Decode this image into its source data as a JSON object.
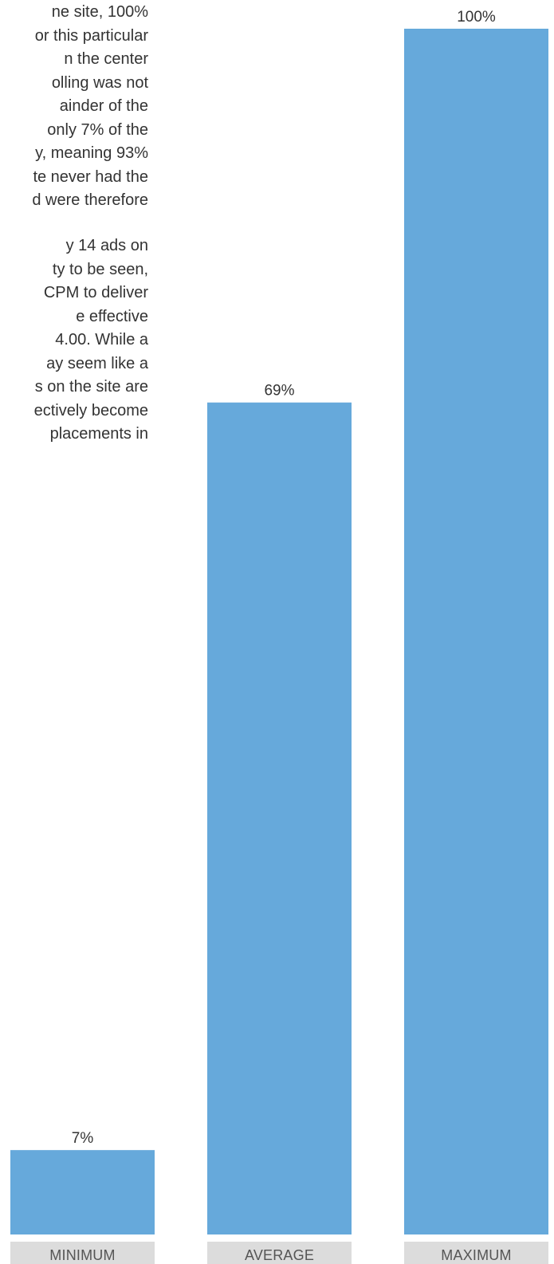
{
  "article": {
    "paragraphs": [
      {
        "lines": [
          "ne site, 100%",
          "or this particular",
          "n the center",
          "olling was not",
          "ainder of the",
          "only 7% of the",
          "y, meaning 93%",
          "te never had the",
          "d were therefore"
        ]
      },
      {
        "lines": [
          "y 14 ads on",
          "ty to be seen,",
          " CPM to deliver",
          "e effective",
          "4.00. While a",
          "ay seem like a",
          "s on the site are",
          "ectively become",
          " placements in"
        ]
      }
    ]
  },
  "chart_data": {
    "type": "bar",
    "categories": [
      "MINIMUM",
      "AVERAGE",
      "MAXIMUM"
    ],
    "values": [
      7,
      69,
      100
    ],
    "data_labels": [
      "7%",
      "69%",
      "100%"
    ],
    "ylim": [
      0,
      100
    ],
    "grid": false,
    "colors": {
      "bar": "#66a9db",
      "category_band": "#dcdcdc",
      "text": "#333333"
    }
  }
}
